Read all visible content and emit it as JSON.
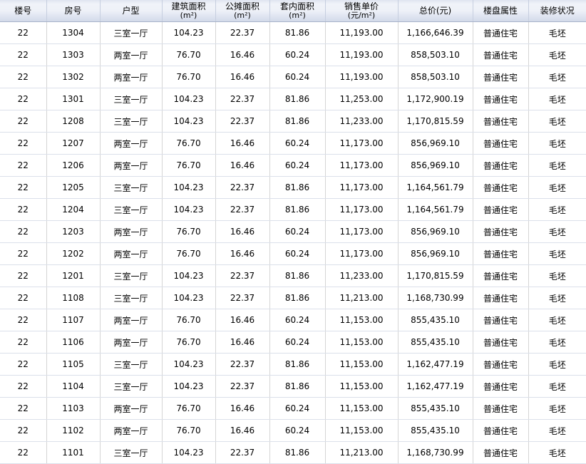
{
  "table": {
    "columns": [
      {
        "key": "building_no",
        "label": "楼号",
        "unit": ""
      },
      {
        "key": "room_no",
        "label": "房号",
        "unit": ""
      },
      {
        "key": "layout",
        "label": "户型",
        "unit": ""
      },
      {
        "key": "gross_area",
        "label": "建筑面积",
        "unit": "(m²)"
      },
      {
        "key": "shared_area",
        "label": "公摊面积",
        "unit": "(m²)"
      },
      {
        "key": "inner_area",
        "label": "套内面积",
        "unit": "(m²)"
      },
      {
        "key": "unit_price",
        "label": "销售单价",
        "unit": "(元/m²)"
      },
      {
        "key": "total_price",
        "label": "总价(元)",
        "unit": ""
      },
      {
        "key": "property_type",
        "label": "楼盘属性",
        "unit": ""
      },
      {
        "key": "decoration",
        "label": "装修状况",
        "unit": ""
      }
    ],
    "rows": [
      [
        "22",
        "1304",
        "三室一厅",
        "104.23",
        "22.37",
        "81.86",
        "11,193.00",
        "1,166,646.39",
        "普通住宅",
        "毛坯"
      ],
      [
        "22",
        "1303",
        "两室一厅",
        "76.70",
        "16.46",
        "60.24",
        "11,193.00",
        "858,503.10",
        "普通住宅",
        "毛坯"
      ],
      [
        "22",
        "1302",
        "两室一厅",
        "76.70",
        "16.46",
        "60.24",
        "11,193.00",
        "858,503.10",
        "普通住宅",
        "毛坯"
      ],
      [
        "22",
        "1301",
        "三室一厅",
        "104.23",
        "22.37",
        "81.86",
        "11,253.00",
        "1,172,900.19",
        "普通住宅",
        "毛坯"
      ],
      [
        "22",
        "1208",
        "三室一厅",
        "104.23",
        "22.37",
        "81.86",
        "11,233.00",
        "1,170,815.59",
        "普通住宅",
        "毛坯"
      ],
      [
        "22",
        "1207",
        "两室一厅",
        "76.70",
        "16.46",
        "60.24",
        "11,173.00",
        "856,969.10",
        "普通住宅",
        "毛坯"
      ],
      [
        "22",
        "1206",
        "两室一厅",
        "76.70",
        "16.46",
        "60.24",
        "11,173.00",
        "856,969.10",
        "普通住宅",
        "毛坯"
      ],
      [
        "22",
        "1205",
        "三室一厅",
        "104.23",
        "22.37",
        "81.86",
        "11,173.00",
        "1,164,561.79",
        "普通住宅",
        "毛坯"
      ],
      [
        "22",
        "1204",
        "三室一厅",
        "104.23",
        "22.37",
        "81.86",
        "11,173.00",
        "1,164,561.79",
        "普通住宅",
        "毛坯"
      ],
      [
        "22",
        "1203",
        "两室一厅",
        "76.70",
        "16.46",
        "60.24",
        "11,173.00",
        "856,969.10",
        "普通住宅",
        "毛坯"
      ],
      [
        "22",
        "1202",
        "两室一厅",
        "76.70",
        "16.46",
        "60.24",
        "11,173.00",
        "856,969.10",
        "普通住宅",
        "毛坯"
      ],
      [
        "22",
        "1201",
        "三室一厅",
        "104.23",
        "22.37",
        "81.86",
        "11,233.00",
        "1,170,815.59",
        "普通住宅",
        "毛坯"
      ],
      [
        "22",
        "1108",
        "三室一厅",
        "104.23",
        "22.37",
        "81.86",
        "11,213.00",
        "1,168,730.99",
        "普通住宅",
        "毛坯"
      ],
      [
        "22",
        "1107",
        "两室一厅",
        "76.70",
        "16.46",
        "60.24",
        "11,153.00",
        "855,435.10",
        "普通住宅",
        "毛坯"
      ],
      [
        "22",
        "1106",
        "两室一厅",
        "76.70",
        "16.46",
        "60.24",
        "11,153.00",
        "855,435.10",
        "普通住宅",
        "毛坯"
      ],
      [
        "22",
        "1105",
        "三室一厅",
        "104.23",
        "22.37",
        "81.86",
        "11,153.00",
        "1,162,477.19",
        "普通住宅",
        "毛坯"
      ],
      [
        "22",
        "1104",
        "三室一厅",
        "104.23",
        "22.37",
        "81.86",
        "11,153.00",
        "1,162,477.19",
        "普通住宅",
        "毛坯"
      ],
      [
        "22",
        "1103",
        "两室一厅",
        "76.70",
        "16.46",
        "60.24",
        "11,153.00",
        "855,435.10",
        "普通住宅",
        "毛坯"
      ],
      [
        "22",
        "1102",
        "两室一厅",
        "76.70",
        "16.46",
        "60.24",
        "11,153.00",
        "855,435.10",
        "普通住宅",
        "毛坯"
      ],
      [
        "22",
        "1101",
        "三室一厅",
        "104.23",
        "22.37",
        "81.86",
        "11,213.00",
        "1,168,730.99",
        "普通住宅",
        "毛坯"
      ]
    ]
  },
  "colors": {
    "header_top": "#dfe4f0",
    "header_mid": "#f0f3f9",
    "header_low": "#dde3f0",
    "header_bottom": "#d3dae9",
    "header_border": "#a7b2c9",
    "header_sep": "#c6cedf",
    "grid_v": "#d5d5d5",
    "grid_h": "#dbe0ea",
    "row_bg": "#ffffff",
    "text": "#000000"
  }
}
